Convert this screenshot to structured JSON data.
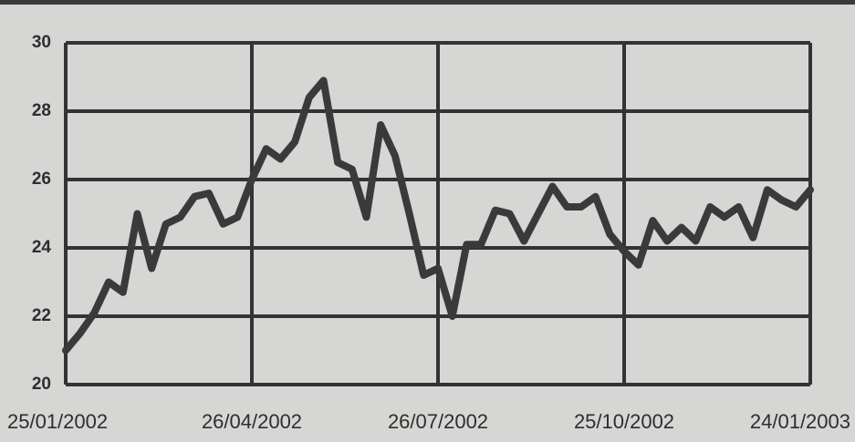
{
  "chart_data": {
    "type": "line",
    "categories": [
      "25/01/2002",
      null,
      null,
      null,
      null,
      null,
      null,
      null,
      null,
      null,
      null,
      null,
      null,
      "26/04/2002",
      null,
      null,
      null,
      null,
      null,
      null,
      null,
      null,
      null,
      null,
      null,
      null,
      "26/07/2002",
      null,
      null,
      null,
      null,
      null,
      null,
      null,
      null,
      null,
      null,
      null,
      null,
      "25/10/2002",
      null,
      null,
      null,
      null,
      null,
      null,
      null,
      null,
      null,
      null,
      null,
      null,
      "24/01/2003"
    ],
    "values": [
      21.0,
      21.5,
      22.1,
      23.0,
      22.7,
      25.0,
      23.4,
      24.7,
      24.9,
      25.5,
      25.6,
      24.7,
      24.9,
      26.0,
      26.9,
      26.6,
      27.1,
      28.4,
      28.9,
      26.5,
      26.3,
      24.9,
      27.6,
      26.7,
      25.0,
      23.2,
      23.4,
      22.0,
      24.1,
      24.1,
      25.1,
      25.0,
      24.2,
      25.0,
      25.8,
      25.2,
      25.2,
      25.5,
      24.4,
      23.9,
      23.5,
      24.8,
      24.2,
      24.6,
      24.2,
      25.2,
      24.9,
      25.2,
      24.3,
      25.7,
      25.4,
      25.2,
      25.7
    ],
    "color": "#3a3a3a",
    "ylim": [
      20,
      30
    ],
    "yticks": [
      20,
      22,
      24,
      26,
      28,
      30
    ],
    "grid": true
  }
}
